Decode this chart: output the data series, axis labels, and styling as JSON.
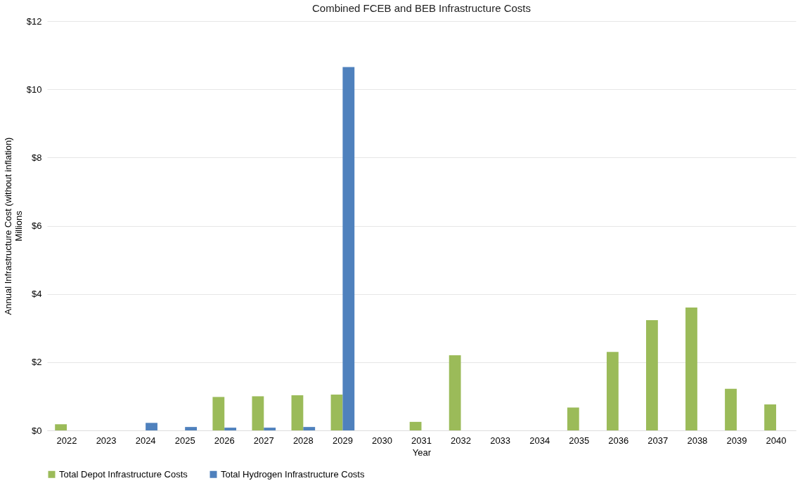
{
  "chart_data": {
    "type": "bar",
    "title": "Combined FCEB and BEB Infrastructure Costs",
    "xlabel": "Year",
    "ylabel": "Annual Infrastructure Cost (without inflation)",
    "annotations": [
      "Millions"
    ],
    "categories": [
      "2022",
      "2023",
      "2024",
      "2025",
      "2026",
      "2027",
      "2028",
      "2029",
      "2030",
      "2031",
      "2032",
      "2033",
      "2034",
      "2035",
      "2036",
      "2037",
      "2038",
      "2039",
      "2040"
    ],
    "series": [
      {
        "name": "Total Depot Infrastructure Costs",
        "color": "#9bbb59",
        "values": [
          0.18,
          0,
          0,
          0,
          0.98,
          1.0,
          1.03,
          1.05,
          0,
          0.25,
          2.2,
          0,
          0,
          0.67,
          2.3,
          3.23,
          3.6,
          1.22,
          0.76
        ]
      },
      {
        "name": "Total Hydrogen Infrastructure Costs",
        "color": "#4f81bd",
        "values": [
          0,
          0,
          0.22,
          0.1,
          0.08,
          0.08,
          0.1,
          10.65,
          0,
          0,
          0,
          0,
          0,
          0,
          0,
          0,
          0,
          0,
          0
        ]
      }
    ],
    "ylim": [
      0,
      12
    ],
    "yticks": [
      {
        "value": 0,
        "label": "$0"
      },
      {
        "value": 2,
        "label": "$2"
      },
      {
        "value": 4,
        "label": "$4"
      },
      {
        "value": 6,
        "label": "$6"
      },
      {
        "value": 8,
        "label": "$8"
      },
      {
        "value": 10,
        "label": "$10"
      },
      {
        "value": 12,
        "label": "$12"
      }
    ],
    "grid": "y",
    "legend": "bottom"
  }
}
